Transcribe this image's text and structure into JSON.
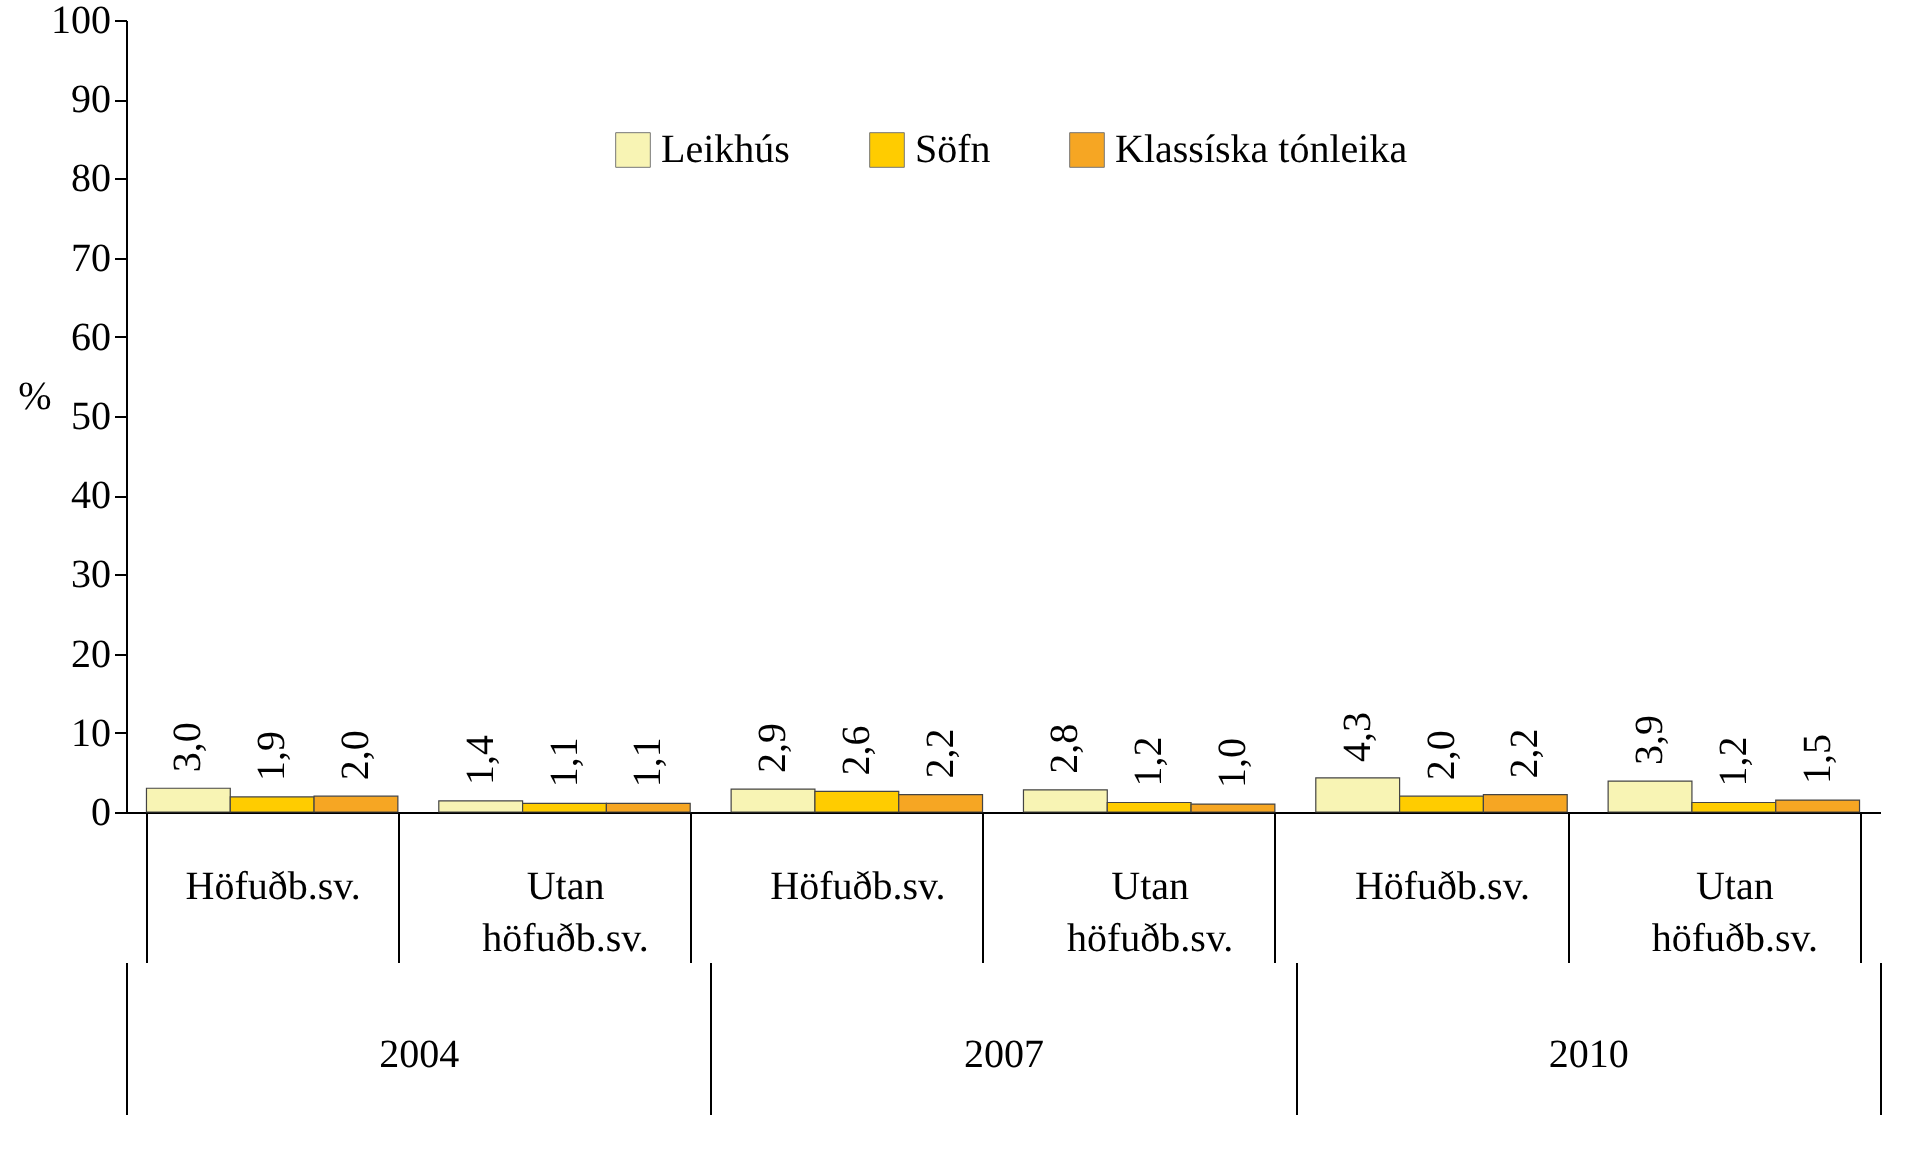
{
  "chart_data": {
    "type": "bar",
    "ylabel": "%",
    "categories": [
      "Höfuðb.sv.",
      "Utan höfuðb.sv.",
      "Höfuðb.sv.",
      "Utan höfuðb.sv.",
      "Höfuðb.sv.",
      "Utan höfuðb.sv."
    ],
    "annotations": [
      "2004",
      "2007",
      "2010"
    ],
    "series": [
      {
        "name": "Leikhús",
        "color": "#f8f4b4",
        "values": [
          3.0,
          1.4,
          2.9,
          2.8,
          4.3,
          3.9
        ],
        "value_labels": [
          "3,0",
          "1,4",
          "2,9",
          "2,8",
          "4,3",
          "3,9"
        ]
      },
      {
        "name": "Söfn",
        "color": "#ffcc00",
        "values": [
          1.9,
          1.1,
          2.6,
          1.2,
          2.0,
          1.2
        ],
        "value_labels": [
          "1,9",
          "1,1",
          "2,6",
          "1,2",
          "2,0",
          "1,2"
        ]
      },
      {
        "name": "Klassíska tónleika",
        "color": "#f6a623",
        "values": [
          2.0,
          1.1,
          2.2,
          1.0,
          2.2,
          1.5
        ],
        "value_labels": [
          "2,0",
          "1,1",
          "2,2",
          "1,0",
          "2,2",
          "1,5"
        ]
      }
    ],
    "ylim": [
      0,
      100
    ],
    "yticks": [
      0,
      10,
      20,
      30,
      40,
      50,
      60,
      70,
      80,
      90,
      100
    ],
    "grid": false,
    "legend": "top"
  }
}
